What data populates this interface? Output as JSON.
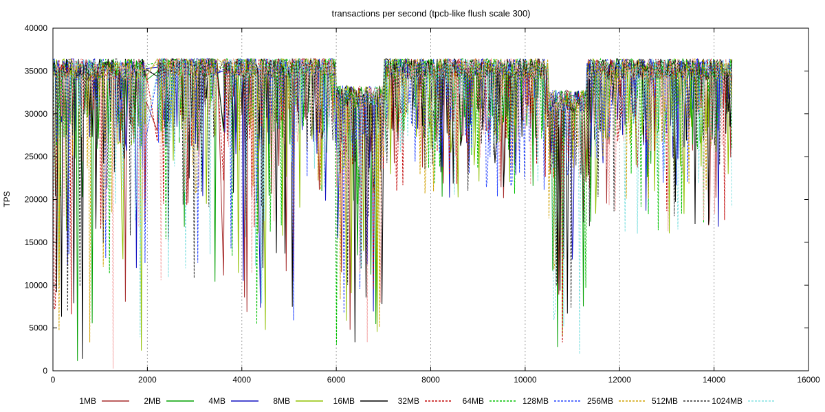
{
  "chart_data": {
    "type": "line",
    "title": "transactions per second (tpcb-like flush scale 300)",
    "xlabel": "",
    "ylabel": "TPS",
    "xlim": [
      0,
      16000
    ],
    "ylim": [
      0,
      40000
    ],
    "x_ticks": [
      0,
      2000,
      4000,
      6000,
      8000,
      10000,
      12000,
      14000,
      16000
    ],
    "y_ticks": [
      0,
      5000,
      10000,
      15000,
      20000,
      25000,
      30000,
      35000,
      40000
    ],
    "x_tick_labels": [
      "0",
      "2000",
      "4000",
      "6000",
      "8000",
      "10000",
      "12000",
      "14000",
      "16000"
    ],
    "y_tick_labels": [
      "0",
      "5000",
      "10000",
      "15000",
      "20000",
      "25000",
      "30000",
      "35000",
      "40000"
    ],
    "grid": "vertical dotted lines at x ticks",
    "legend_position": "bottom",
    "x_end": 14400,
    "segments": [
      {
        "x0": 0,
        "x1": 2000,
        "mean": 35200,
        "dip_min": 0
      },
      {
        "x0": 2200,
        "x1": 3500,
        "mean": 35600,
        "dip_min": 10000
      },
      {
        "x0": 3600,
        "x1": 5200,
        "mean": 35400,
        "dip_min": 4000
      },
      {
        "x0": 5200,
        "x1": 6000,
        "mean": 35600,
        "dip_min": 19000
      },
      {
        "x0": 6000,
        "x1": 7000,
        "mean": 32000,
        "dip_min": 1000
      },
      {
        "x0": 7000,
        "x1": 10500,
        "mean": 35300,
        "dip_min": 20000
      },
      {
        "x0": 10500,
        "x1": 11300,
        "mean": 31500,
        "dip_min": 1500
      },
      {
        "x0": 11300,
        "x1": 14400,
        "mean": 35200,
        "dip_min": 16000
      }
    ],
    "series": [
      {
        "name": "1MB",
        "color": "#a52a2a",
        "dash": "solid"
      },
      {
        "name": "2MB",
        "color": "#00a000",
        "dash": "solid"
      },
      {
        "name": "4MB",
        "color": "#1010c0",
        "dash": "solid"
      },
      {
        "name": "8MB",
        "color": "#90c000",
        "dash": "solid"
      },
      {
        "name": "16MB",
        "color": "#000000",
        "dash": "solid"
      },
      {
        "name": "32MB",
        "color": "#c00000",
        "dash": "dashed"
      },
      {
        "name": "64MB",
        "color": "#00c000",
        "dash": "dashed"
      },
      {
        "name": "128MB",
        "color": "#2040ff",
        "dash": "dashed"
      },
      {
        "name": "256MB",
        "color": "#d0a000",
        "dash": "dashed"
      },
      {
        "name": "512MB",
        "color": "#303030",
        "dash": "dashed"
      },
      {
        "name": "1024MB",
        "color": "#80e0e0",
        "dash": "dashed"
      }
    ],
    "overlay_color": "#f4a6a6"
  }
}
